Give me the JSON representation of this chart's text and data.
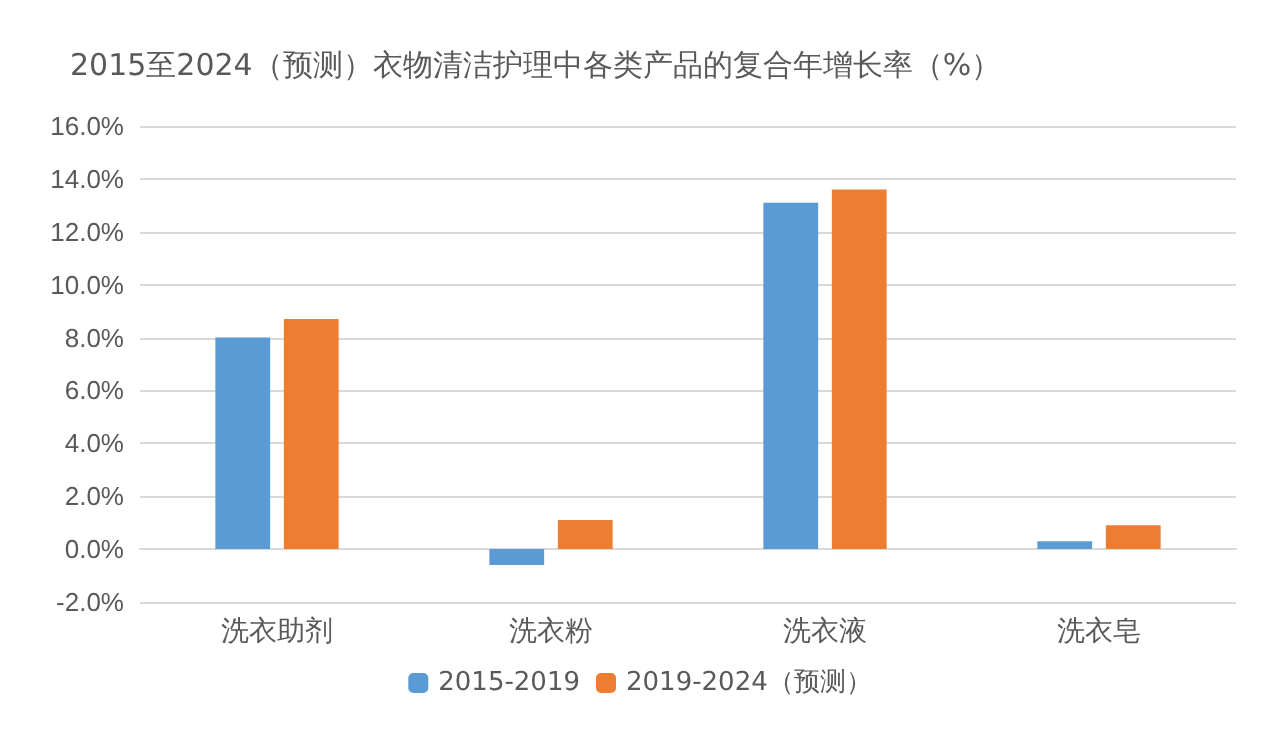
{
  "chart_data": {
    "type": "bar",
    "title": "2015至2024（预测）衣物清洁护理中各类产品的复合年增长率（%）",
    "categories": [
      "洗衣助剂",
      "洗衣粉",
      "洗衣液",
      "洗衣皂"
    ],
    "series": [
      {
        "name": "2015-2019",
        "color": "#5b9bd5",
        "values": [
          8.0,
          -0.6,
          13.1,
          0.3
        ]
      },
      {
        "name": "2019-2024（预测）",
        "color": "#ed7d31",
        "values": [
          8.7,
          1.1,
          13.6,
          0.9
        ]
      }
    ],
    "ylim": [
      -2,
      16
    ],
    "yticks": [
      {
        "value": -2,
        "label": "-2.0%"
      },
      {
        "value": 0,
        "label": "0.0%"
      },
      {
        "value": 2,
        "label": "2.0%"
      },
      {
        "value": 4,
        "label": "4.0%"
      },
      {
        "value": 6,
        "label": "6.0%"
      },
      {
        "value": 8,
        "label": "8.0%"
      },
      {
        "value": 10,
        "label": "10.0%"
      },
      {
        "value": 12,
        "label": "12.0%"
      },
      {
        "value": 14,
        "label": "14.0%"
      },
      {
        "value": 16,
        "label": "16.0%"
      }
    ],
    "grid": "y",
    "legend": "bottom"
  }
}
